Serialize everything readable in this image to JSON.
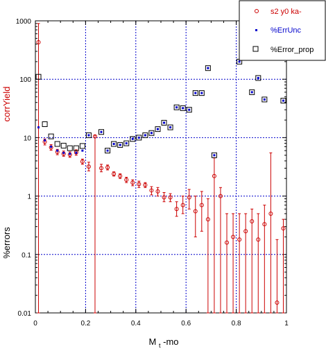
{
  "chart_data": {
    "type": "scatter",
    "xlabel": "M_t-mo",
    "xlabel_main": "M",
    "xlabel_sub": "t",
    "xlabel_rest": "-mo",
    "ylabel_top": "corrYield",
    "ylabel_bottom": "%errors",
    "xlim": [
      0,
      1
    ],
    "ylim": [
      0.01,
      1000
    ],
    "yscale": "log",
    "grid": true,
    "legend_position": "top-right",
    "colors": {
      "corrYield": "#cc0000",
      "ErrUnc": "#0000cc",
      "Error_prop": "#000000",
      "grid": "#0000cc",
      "axis": "#000000"
    },
    "x_ticks": [
      {
        "value": 0,
        "label": "0"
      },
      {
        "value": 0.2,
        "label": "0.2"
      },
      {
        "value": 0.4,
        "label": "0.4"
      },
      {
        "value": 0.6,
        "label": "0.6"
      },
      {
        "value": 0.8,
        "label": "0.8"
      },
      {
        "value": 1,
        "label": "1"
      }
    ],
    "y_ticks": [
      {
        "value": 0.01,
        "label": "0.01"
      },
      {
        "value": 0.1,
        "label": "0.1"
      },
      {
        "value": 1,
        "label": "1"
      },
      {
        "value": 10,
        "label": "10"
      },
      {
        "value": 100,
        "label": "100"
      },
      {
        "value": 1000,
        "label": "1000"
      }
    ],
    "series": [
      {
        "name": "s2 y0 ka-",
        "marker": "circle",
        "color": "#cc0000",
        "points": [
          {
            "x": 0.0125,
            "y": 430,
            "lo": 0.01,
            "hi": 900
          },
          {
            "x": 0.0375,
            "y": 8.5,
            "lo": 7.5,
            "hi": 9.5
          },
          {
            "x": 0.0625,
            "y": 6.8,
            "lo": 6.1,
            "hi": 7.6
          },
          {
            "x": 0.0875,
            "y": 5.7,
            "lo": 5.1,
            "hi": 6.3
          },
          {
            "x": 0.1125,
            "y": 5.3,
            "lo": 4.8,
            "hi": 5.9
          },
          {
            "x": 0.1375,
            "y": 5.1,
            "lo": 4.6,
            "hi": 5.7
          },
          {
            "x": 0.1625,
            "y": 5.6,
            "lo": 5.0,
            "hi": 6.2
          },
          {
            "x": 0.1875,
            "y": 3.9,
            "lo": 3.5,
            "hi": 4.3
          },
          {
            "x": 0.2125,
            "y": 3.2,
            "lo": 2.7,
            "hi": 3.8
          },
          {
            "x": 0.2375,
            "y": 10.5,
            "lo": 0.01,
            "hi": 11
          },
          {
            "x": 0.2625,
            "y": 3.0,
            "lo": 2.6,
            "hi": 3.5
          },
          {
            "x": 0.2875,
            "y": 3.1,
            "lo": 2.8,
            "hi": 3.4
          },
          {
            "x": 0.3125,
            "y": 2.4,
            "lo": 2.2,
            "hi": 2.6
          },
          {
            "x": 0.3375,
            "y": 2.2,
            "lo": 2.0,
            "hi": 2.4
          },
          {
            "x": 0.3625,
            "y": 1.9,
            "lo": 1.7,
            "hi": 2.1
          },
          {
            "x": 0.3875,
            "y": 1.7,
            "lo": 1.5,
            "hi": 1.9
          },
          {
            "x": 0.4125,
            "y": 1.6,
            "lo": 1.4,
            "hi": 1.8
          },
          {
            "x": 0.4375,
            "y": 1.55,
            "lo": 1.4,
            "hi": 1.7
          },
          {
            "x": 0.4625,
            "y": 1.25,
            "lo": 1.05,
            "hi": 1.45
          },
          {
            "x": 0.4875,
            "y": 1.2,
            "lo": 1.0,
            "hi": 1.4
          },
          {
            "x": 0.5125,
            "y": 0.95,
            "lo": 0.8,
            "hi": 1.15
          },
          {
            "x": 0.5375,
            "y": 0.95,
            "lo": 0.8,
            "hi": 1.1
          },
          {
            "x": 0.5625,
            "y": 0.6,
            "lo": 0.45,
            "hi": 0.8
          },
          {
            "x": 0.5875,
            "y": 0.7,
            "lo": 0.5,
            "hi": 1.0
          },
          {
            "x": 0.6125,
            "y": 0.95,
            "lo": 0.6,
            "hi": 1.3
          },
          {
            "x": 0.6375,
            "y": 0.55,
            "lo": 0.2,
            "hi": 1.0
          },
          {
            "x": 0.6625,
            "y": 0.7,
            "lo": 0.25,
            "hi": 1.2
          },
          {
            "x": 0.6875,
            "y": 0.4,
            "lo": 0.01,
            "hi": 0.9
          },
          {
            "x": 0.7125,
            "y": 2.2,
            "lo": 0.01,
            "hi": 4.5
          },
          {
            "x": 0.7375,
            "y": 1.0,
            "lo": 0.01,
            "hi": 1.4
          },
          {
            "x": 0.7625,
            "y": 0.16,
            "lo": 0.01,
            "hi": 0.5
          },
          {
            "x": 0.7875,
            "y": 0.2,
            "lo": 0.01,
            "hi": 0.5
          },
          {
            "x": 0.8125,
            "y": 0.18,
            "lo": 0.01,
            "hi": 0.5
          },
          {
            "x": 0.8375,
            "y": 0.25,
            "lo": 0.01,
            "hi": 0.5
          },
          {
            "x": 0.8625,
            "y": 0.37,
            "lo": 0.01,
            "hi": 0.6
          },
          {
            "x": 0.8875,
            "y": 0.18,
            "lo": 0.01,
            "hi": 0.5
          },
          {
            "x": 0.9125,
            "y": 0.33,
            "lo": 0.01,
            "hi": 0.7
          },
          {
            "x": 0.9375,
            "y": 0.5,
            "lo": 0.01,
            "hi": 5.5
          },
          {
            "x": 0.9625,
            "y": 0.015,
            "lo": 0.01,
            "hi": 0.18
          },
          {
            "x": 0.9875,
            "y": 0.28,
            "lo": 0.01,
            "hi": 0.4
          }
        ]
      },
      {
        "name": "%ErrUnc",
        "marker": "dot",
        "color": "#0000cc",
        "points": [
          {
            "x": 0.0125,
            "y": 15
          },
          {
            "x": 0.0375,
            "y": 9
          },
          {
            "x": 0.0625,
            "y": 7
          },
          {
            "x": 0.0875,
            "y": 6
          },
          {
            "x": 0.1125,
            "y": 5.5
          },
          {
            "x": 0.1375,
            "y": 5.3
          },
          {
            "x": 0.1625,
            "y": 5.5
          },
          {
            "x": 0.1875,
            "y": 6
          },
          {
            "x": 0.2125,
            "y": 11
          },
          {
            "x": 0.2625,
            "y": 12.5
          },
          {
            "x": 0.2875,
            "y": 6
          },
          {
            "x": 0.3125,
            "y": 7.8
          },
          {
            "x": 0.3375,
            "y": 7.5
          },
          {
            "x": 0.3625,
            "y": 8
          },
          {
            "x": 0.3875,
            "y": 9.5
          },
          {
            "x": 0.4125,
            "y": 10
          },
          {
            "x": 0.4375,
            "y": 11
          },
          {
            "x": 0.4625,
            "y": 12
          },
          {
            "x": 0.4875,
            "y": 14
          },
          {
            "x": 0.5125,
            "y": 18
          },
          {
            "x": 0.5375,
            "y": 15
          },
          {
            "x": 0.5625,
            "y": 33
          },
          {
            "x": 0.5875,
            "y": 32
          },
          {
            "x": 0.6125,
            "y": 30
          },
          {
            "x": 0.6375,
            "y": 58
          },
          {
            "x": 0.6625,
            "y": 58
          },
          {
            "x": 0.6875,
            "y": 155
          },
          {
            "x": 0.7125,
            "y": 5
          },
          {
            "x": 0.8125,
            "y": 200
          },
          {
            "x": 0.8625,
            "y": 60
          },
          {
            "x": 0.8875,
            "y": 105
          },
          {
            "x": 0.9125,
            "y": 45
          },
          {
            "x": 0.9875,
            "y": 43
          }
        ]
      },
      {
        "name": "%Error_prop",
        "marker": "square",
        "color": "#000000",
        "points": [
          {
            "x": 0.0125,
            "y": 110
          },
          {
            "x": 0.0375,
            "y": 17
          },
          {
            "x": 0.0625,
            "y": 10.5
          },
          {
            "x": 0.0875,
            "y": 7.8
          },
          {
            "x": 0.1125,
            "y": 7.3
          },
          {
            "x": 0.1375,
            "y": 6.6
          },
          {
            "x": 0.1625,
            "y": 6.6
          },
          {
            "x": 0.1875,
            "y": 7.2
          },
          {
            "x": 0.2125,
            "y": 11
          },
          {
            "x": 0.2625,
            "y": 12.5
          },
          {
            "x": 0.2875,
            "y": 6
          },
          {
            "x": 0.3125,
            "y": 7.8
          },
          {
            "x": 0.3375,
            "y": 7.5
          },
          {
            "x": 0.3625,
            "y": 8
          },
          {
            "x": 0.3875,
            "y": 9.5
          },
          {
            "x": 0.4125,
            "y": 10
          },
          {
            "x": 0.4375,
            "y": 11
          },
          {
            "x": 0.4625,
            "y": 12
          },
          {
            "x": 0.4875,
            "y": 14
          },
          {
            "x": 0.5125,
            "y": 18
          },
          {
            "x": 0.5375,
            "y": 15
          },
          {
            "x": 0.5625,
            "y": 33
          },
          {
            "x": 0.5875,
            "y": 32
          },
          {
            "x": 0.6125,
            "y": 30
          },
          {
            "x": 0.6375,
            "y": 58
          },
          {
            "x": 0.6625,
            "y": 58
          },
          {
            "x": 0.6875,
            "y": 155
          },
          {
            "x": 0.7125,
            "y": 5
          },
          {
            "x": 0.8125,
            "y": 200
          },
          {
            "x": 0.8625,
            "y": 60
          },
          {
            "x": 0.8875,
            "y": 105
          },
          {
            "x": 0.9125,
            "y": 45
          },
          {
            "x": 0.9875,
            "y": 43
          }
        ]
      }
    ]
  }
}
